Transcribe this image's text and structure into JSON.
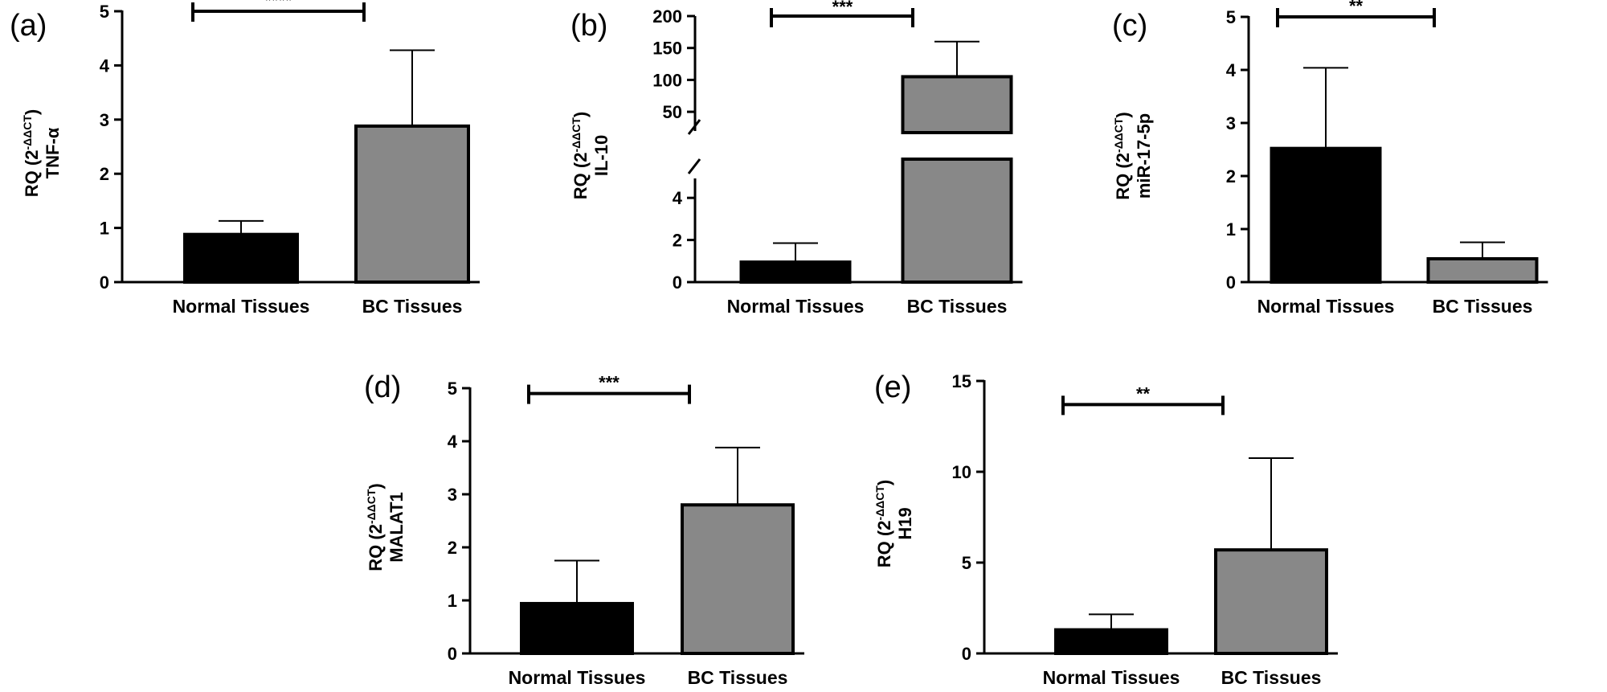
{
  "colors": {
    "normal": "#000000",
    "bc": "#888888",
    "axis": "#000000"
  },
  "chart_data": [
    {
      "id": "a",
      "panel_label": "(a)",
      "type": "bar",
      "ylabel_main": "RQ (2",
      "ylabel_sup": "-ΔΔCT",
      "ylabel_close": ")",
      "ylabel_gene": "TNF-α",
      "categories": [
        "Normal Tissues",
        "BC Tissues"
      ],
      "values": [
        0.88,
        2.88
      ],
      "errors": [
        0.25,
        1.4
      ],
      "ylim": [
        0,
        5
      ],
      "yticks": [
        0,
        1,
        2,
        3,
        4,
        5
      ],
      "ytick_labels": [
        "0",
        "1",
        "2",
        "3",
        "4",
        "5"
      ],
      "significance": "****",
      "sig_y": 5.0
    },
    {
      "id": "b",
      "panel_label": "(b)",
      "type": "bar",
      "ylabel_main": "RQ (2",
      "ylabel_sup": "-ΔΔCT",
      "ylabel_close": ")",
      "ylabel_gene": "IL-10",
      "categories": [
        "Normal Tissues",
        "BC Tissues"
      ],
      "values": [
        0.95,
        105
      ],
      "errors": [
        0.9,
        55
      ],
      "axis_break": true,
      "lower_ylim": [
        0,
        5
      ],
      "lower_yticks": [
        0,
        2,
        4
      ],
      "lower_ytick_labels": [
        "0",
        "2",
        "4"
      ],
      "upper_ylim": [
        30,
        200
      ],
      "upper_yticks": [
        50,
        100,
        150,
        200
      ],
      "upper_ytick_labels": [
        "50",
        "100",
        "150",
        "200"
      ],
      "significance": "***",
      "sig_y": 200
    },
    {
      "id": "c",
      "panel_label": "(c)",
      "type": "bar",
      "ylabel_main": "RQ (2",
      "ylabel_sup": "-ΔΔCT",
      "ylabel_close": ")",
      "ylabel_gene": "miR-17-5p",
      "categories": [
        "Normal Tissues",
        "BC Tissues"
      ],
      "values": [
        2.52,
        0.44
      ],
      "errors": [
        1.52,
        0.31
      ],
      "ylim": [
        0,
        5
      ],
      "yticks": [
        0,
        1,
        2,
        3,
        4,
        5
      ],
      "ytick_labels": [
        "0",
        "1",
        "2",
        "3",
        "4",
        "5"
      ],
      "significance": "**",
      "sig_y": 5.0
    },
    {
      "id": "d",
      "panel_label": "(d)",
      "type": "bar",
      "ylabel_main": "RQ (2",
      "ylabel_sup": "-ΔΔCT",
      "ylabel_close": ")",
      "ylabel_gene": "MALAT1",
      "categories": [
        "Normal Tissues",
        "BC Tissues"
      ],
      "values": [
        0.94,
        2.8
      ],
      "errors": [
        0.81,
        1.08
      ],
      "ylim": [
        0,
        5
      ],
      "yticks": [
        0,
        1,
        2,
        3,
        4,
        5
      ],
      "ytick_labels": [
        "0",
        "1",
        "2",
        "3",
        "4",
        "5"
      ],
      "significance": "***",
      "sig_y": 4.9
    },
    {
      "id": "e",
      "panel_label": "(e)",
      "type": "bar",
      "ylabel_main": "RQ (2",
      "ylabel_sup": "-ΔΔCT",
      "ylabel_close": ")",
      "ylabel_gene": "H19",
      "categories": [
        "Normal Tissues",
        "BC Tissues"
      ],
      "values": [
        1.3,
        5.7
      ],
      "errors": [
        0.85,
        5.05
      ],
      "ylim": [
        0,
        15
      ],
      "yticks": [
        0,
        5,
        10,
        15
      ],
      "ytick_labels": [
        "0",
        "5",
        "10",
        "15"
      ],
      "significance": "**",
      "sig_y": 13.7
    }
  ]
}
